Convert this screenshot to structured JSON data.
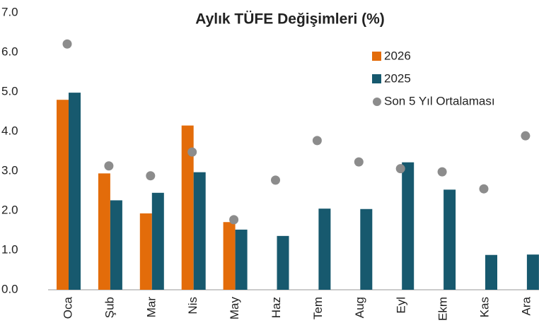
{
  "chart_data": {
    "type": "bar",
    "title": "Aylık TÜFE Değişimleri (%)",
    "categories": [
      "Oca",
      "Şub",
      "Mar",
      "Nis",
      "May",
      "Haz",
      "Tem",
      "Aug",
      "Eyl",
      "Ekm",
      "Kas",
      "Ara"
    ],
    "series": [
      {
        "name": "2026",
        "type": "bar",
        "color": "#e36c0a",
        "values": [
          4.8,
          2.94,
          1.93,
          4.15,
          1.71,
          null,
          null,
          null,
          null,
          null,
          null,
          null
        ]
      },
      {
        "name": "2025",
        "type": "bar",
        "color": "#17596e",
        "values": [
          4.98,
          2.26,
          2.45,
          2.97,
          1.52,
          1.36,
          2.05,
          2.04,
          3.22,
          2.53,
          0.88,
          0.89
        ]
      },
      {
        "name": "Son 5 Yıl Ortalaması",
        "type": "scatter",
        "color": "#8c8c8c",
        "values": [
          6.21,
          3.13,
          2.88,
          3.48,
          1.77,
          2.77,
          3.77,
          3.23,
          3.06,
          2.98,
          2.55,
          3.89
        ]
      }
    ],
    "ylim": [
      0,
      7
    ],
    "yticks": [
      {
        "value": 0,
        "label": "0.0"
      },
      {
        "value": 1,
        "label": "1.0"
      },
      {
        "value": 2,
        "label": "2.0"
      },
      {
        "value": 3,
        "label": "3.0"
      },
      {
        "value": 4,
        "label": "4.0"
      },
      {
        "value": 5,
        "label": "5.0"
      },
      {
        "value": 6,
        "label": "6.0"
      },
      {
        "value": 7,
        "label": "7.0"
      }
    ],
    "grid": false,
    "legend": "top-right"
  }
}
